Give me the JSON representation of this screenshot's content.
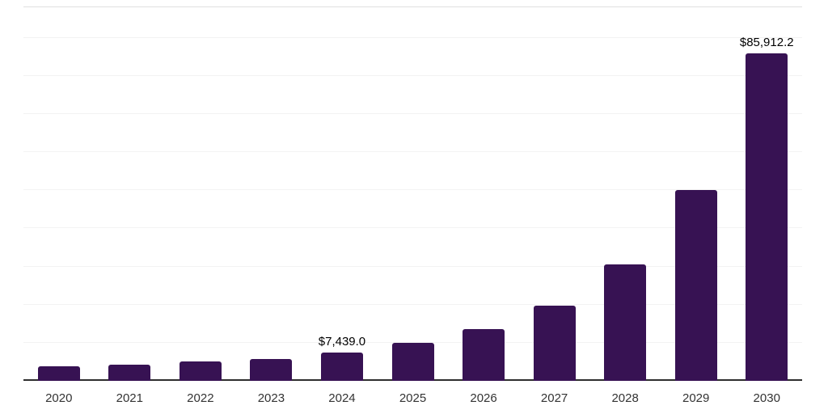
{
  "chart_data": {
    "type": "bar",
    "title": "",
    "xlabel": "",
    "ylabel": "",
    "categories": [
      "2020",
      "2021",
      "2022",
      "2023",
      "2024",
      "2025",
      "2026",
      "2027",
      "2028",
      "2029",
      "2030"
    ],
    "values": [
      3900,
      4150,
      5000,
      5650,
      7439.0,
      9900,
      13600,
      19800,
      30600,
      50100,
      85912.2
    ],
    "annotations": [
      {
        "category": "2024",
        "text": "$7,439.0"
      },
      {
        "category": "2030",
        "text": "$85,912.2"
      }
    ],
    "ylim": [
      0,
      98000
    ],
    "gridline_step": 10000,
    "grid": true,
    "legend": "none",
    "colors": {
      "bar": "#371253",
      "grid": "#f3f3f3",
      "plot_top_border": "#e0e0e0",
      "axis": "#2e2e2e",
      "annotation_text": "#000000",
      "tick_text": "#333333",
      "background": "#ffffff"
    }
  }
}
